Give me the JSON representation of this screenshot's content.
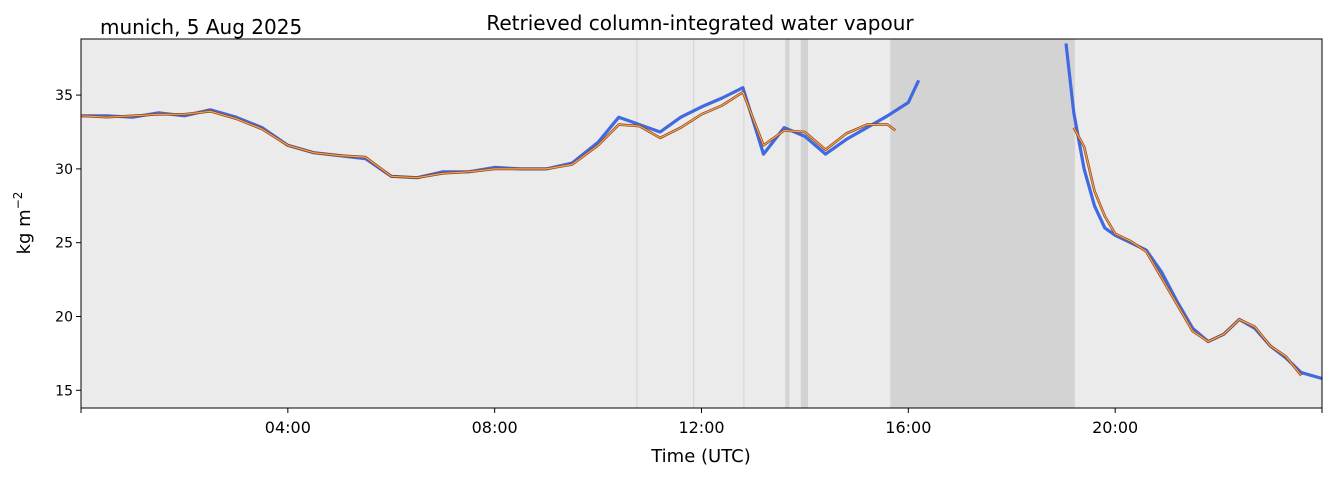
{
  "chart_data": {
    "type": "line",
    "title": "Retrieved column-integrated water vapour",
    "location_label": "munich, 5 Aug 2025",
    "xlabel": "Time (UTC)",
    "ylabel_base": "kg m",
    "ylabel_exp": "−2",
    "xlim": [
      0,
      24
    ],
    "ylim": [
      13.8,
      38.8
    ],
    "x_ticks": [
      {
        "value": 4,
        "label": "04:00"
      },
      {
        "value": 8,
        "label": "08:00"
      },
      {
        "value": 12,
        "label": "12:00"
      },
      {
        "value": 16,
        "label": "16:00"
      },
      {
        "value": 20,
        "label": "20:00"
      }
    ],
    "y_ticks": [
      {
        "value": 15,
        "label": "15"
      },
      {
        "value": 20,
        "label": "20"
      },
      {
        "value": 25,
        "label": "25"
      },
      {
        "value": 30,
        "label": "30"
      },
      {
        "value": 35,
        "label": "35"
      }
    ],
    "gap_regions_hours": [
      [
        13.62,
        13.7
      ],
      [
        13.92,
        14.06
      ],
      [
        15.65,
        19.22
      ]
    ],
    "thin_gap_lines_hours": [
      10.75,
      11.85,
      12.82
    ],
    "colors": {
      "background": "#ebebeb",
      "gap": "#d3d3d3",
      "raw": "#4169e1",
      "smooth_outer": "#8b4513",
      "smooth_inner": "#f4a460"
    },
    "series": [
      {
        "name": "retrieved",
        "x": [
          0,
          0.5,
          1,
          1.5,
          2,
          2.5,
          3,
          3.5,
          4,
          4.5,
          5,
          5.5,
          6,
          6.5,
          7,
          7.5,
          8,
          8.5,
          9,
          9.5,
          10,
          10.4,
          10.8,
          11.2,
          11.6,
          12,
          12.4,
          12.8,
          13.2,
          13.6,
          14,
          14.4,
          14.8,
          15.2,
          15.6,
          16,
          16.2
        ],
        "y": [
          33.6,
          33.6,
          33.5,
          33.8,
          33.6,
          34.0,
          33.5,
          32.8,
          31.6,
          31.1,
          30.9,
          30.7,
          29.5,
          29.4,
          29.8,
          29.8,
          30.1,
          30.0,
          30.0,
          30.4,
          31.8,
          33.5,
          33.0,
          32.5,
          33.5,
          34.2,
          34.8,
          35.5,
          31.0,
          32.8,
          32.2,
          31.0,
          32.0,
          32.8,
          33.6,
          34.5,
          36.0
        ]
      },
      {
        "name": "retrieved_late",
        "x": [
          19.05,
          19.2,
          19.4,
          19.6,
          19.8,
          20,
          20.3,
          20.6,
          20.9,
          21.2,
          21.5,
          21.8,
          22.1,
          22.4,
          22.7,
          23,
          23.3,
          23.6,
          24
        ],
        "y": [
          38.5,
          33.8,
          30.0,
          27.5,
          26.0,
          25.5,
          25.0,
          24.5,
          23.0,
          21.0,
          19.2,
          18.3,
          18.8,
          19.8,
          19.2,
          18.0,
          17.2,
          16.2,
          15.8
        ]
      },
      {
        "name": "smoothed",
        "x": [
          0,
          0.5,
          1,
          1.5,
          2,
          2.5,
          3,
          3.5,
          4,
          4.5,
          5,
          5.5,
          6,
          6.5,
          7,
          7.5,
          8,
          8.5,
          9,
          9.5,
          10,
          10.4,
          10.8,
          11.2,
          11.6,
          12,
          12.4,
          12.8,
          13.2,
          13.6,
          14,
          14.4,
          14.8,
          15.2,
          15.6,
          15.75
        ],
        "y": [
          33.6,
          33.5,
          33.6,
          33.7,
          33.7,
          33.9,
          33.4,
          32.7,
          31.6,
          31.1,
          30.9,
          30.8,
          29.5,
          29.4,
          29.7,
          29.8,
          30.0,
          30.0,
          30.0,
          30.3,
          31.6,
          33.0,
          32.9,
          32.1,
          32.8,
          33.7,
          34.3,
          35.2,
          31.6,
          32.6,
          32.5,
          31.3,
          32.4,
          33.0,
          33.0,
          32.6
        ]
      },
      {
        "name": "smoothed_late",
        "x": [
          19.2,
          19.4,
          19.6,
          19.8,
          20,
          20.3,
          20.6,
          20.9,
          21.2,
          21.5,
          21.8,
          22.1,
          22.4,
          22.7,
          23,
          23.3,
          23.6
        ],
        "y": [
          32.8,
          31.5,
          28.5,
          26.8,
          25.6,
          25.1,
          24.4,
          22.6,
          20.8,
          19.0,
          18.3,
          18.8,
          19.8,
          19.3,
          18.0,
          17.3,
          16.0
        ]
      }
    ]
  }
}
